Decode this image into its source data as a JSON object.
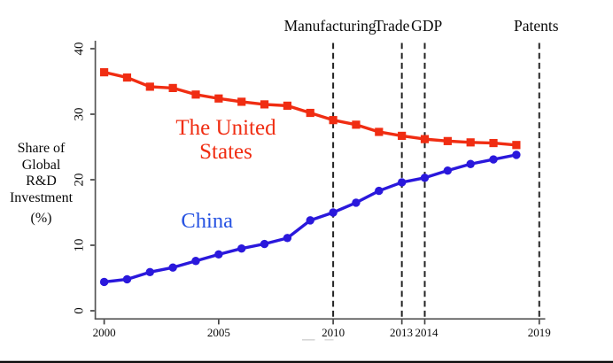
{
  "figure": {
    "background": "#ffffff",
    "bottom_rule_color": "#000000"
  },
  "chart_data": {
    "type": "line",
    "title": "",
    "xlabel": "",
    "ylabel_lines": [
      "Share of",
      "Global",
      "R&D",
      "Investment",
      "(%)"
    ],
    "x": [
      2000,
      2001,
      2002,
      2003,
      2004,
      2005,
      2006,
      2007,
      2008,
      2009,
      2010,
      2011,
      2012,
      2013,
      2014,
      2015,
      2016,
      2017,
      2018
    ],
    "series": [
      {
        "name": "The United States",
        "label_lines": [
          "The United",
          "States"
        ],
        "color": "#f02d12",
        "label_color": "#f02d12",
        "marker": "square",
        "values": [
          36.4,
          35.6,
          34.2,
          34.0,
          33.0,
          32.4,
          31.9,
          31.5,
          31.3,
          30.2,
          29.1,
          28.4,
          27.3,
          26.7,
          26.2,
          25.9,
          25.7,
          25.6,
          25.3
        ]
      },
      {
        "name": "China",
        "label_lines": [
          "China"
        ],
        "color": "#2a18dc",
        "label_color": "#2753e2",
        "marker": "circle",
        "values": [
          4.4,
          4.8,
          5.9,
          6.6,
          7.6,
          8.6,
          9.5,
          10.2,
          11.1,
          13.8,
          15.0,
          16.5,
          18.3,
          19.6,
          20.3,
          21.4,
          22.4,
          23.1,
          23.8
        ]
      }
    ],
    "yticks": [
      0,
      10,
      20,
      30,
      40
    ],
    "xticks": [
      2000,
      2005,
      2010,
      2013,
      2014,
      2019
    ],
    "ylim": [
      -1.3,
      41.2
    ],
    "xlim": [
      1999.6,
      2019.3
    ],
    "grid": false,
    "legend_position": "inline-labels",
    "events": [
      {
        "label": "Manufacturing",
        "year": 2010
      },
      {
        "label": "Trade",
        "year": 2013
      },
      {
        "label": "GDP",
        "year": 2014
      },
      {
        "label": "Patents",
        "year": 2019
      }
    ],
    "event_line_style": "dashed",
    "event_line_color": "#232323",
    "axis_color": "#555555"
  }
}
